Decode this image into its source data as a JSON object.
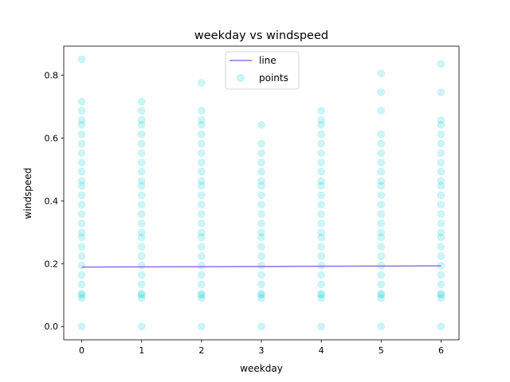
{
  "chart_data": {
    "type": "scatter",
    "title": "weekday vs windspeed",
    "xlabel": "weekday",
    "ylabel": "windspeed",
    "xlim": [
      -0.3,
      6.3
    ],
    "ylim": [
      -0.0425,
      0.8925
    ],
    "xticks": [
      "0",
      "1",
      "2",
      "3",
      "4",
      "5",
      "6"
    ],
    "yticks": [
      "0.0",
      "0.2",
      "0.4",
      "0.6",
      "0.8"
    ],
    "xtick_values": [
      0,
      1,
      2,
      3,
      4,
      5,
      6
    ],
    "ytick_values": [
      0.0,
      0.2,
      0.4,
      0.6,
      0.8
    ],
    "legend": {
      "placement": "top-center",
      "entries": [
        "line",
        "points"
      ]
    },
    "grid": false,
    "series": [
      {
        "name": "line",
        "type": "line",
        "color": "#9370db",
        "x": [
          0,
          6
        ],
        "y": [
          0.189,
          0.193
        ]
      },
      {
        "name": "points",
        "type": "scatter",
        "color": "#00ced1",
        "alpha": 0.2,
        "points": [
          {
            "x": 0,
            "values": [
              0.0,
              0.09,
              0.1,
              0.105,
              0.134,
              0.164,
              0.194,
              0.224,
              0.254,
              0.284,
              0.299,
              0.328,
              0.358,
              0.388,
              0.418,
              0.448,
              0.463,
              0.493,
              0.522,
              0.552,
              0.582,
              0.612,
              0.642,
              0.657,
              0.687,
              0.716,
              0.851
            ]
          },
          {
            "x": 1,
            "values": [
              0.0,
              0.09,
              0.1,
              0.105,
              0.134,
              0.164,
              0.194,
              0.224,
              0.254,
              0.284,
              0.299,
              0.328,
              0.358,
              0.388,
              0.418,
              0.448,
              0.463,
              0.493,
              0.522,
              0.552,
              0.582,
              0.612,
              0.642,
              0.657,
              0.687,
              0.716
            ]
          },
          {
            "x": 2,
            "values": [
              0.0,
              0.09,
              0.1,
              0.105,
              0.134,
              0.164,
              0.194,
              0.224,
              0.254,
              0.284,
              0.299,
              0.328,
              0.358,
              0.388,
              0.418,
              0.448,
              0.463,
              0.493,
              0.522,
              0.552,
              0.582,
              0.612,
              0.642,
              0.657,
              0.687,
              0.776
            ]
          },
          {
            "x": 3,
            "values": [
              0.0,
              0.09,
              0.1,
              0.105,
              0.134,
              0.164,
              0.194,
              0.224,
              0.254,
              0.284,
              0.299,
              0.328,
              0.358,
              0.388,
              0.418,
              0.448,
              0.463,
              0.493,
              0.522,
              0.552,
              0.582,
              0.642
            ]
          },
          {
            "x": 4,
            "values": [
              0.0,
              0.09,
              0.1,
              0.105,
              0.134,
              0.164,
              0.194,
              0.224,
              0.254,
              0.284,
              0.299,
              0.328,
              0.358,
              0.388,
              0.418,
              0.448,
              0.463,
              0.493,
              0.522,
              0.552,
              0.582,
              0.612,
              0.642,
              0.657,
              0.687
            ]
          },
          {
            "x": 5,
            "values": [
              0.0,
              0.09,
              0.1,
              0.105,
              0.134,
              0.164,
              0.194,
              0.224,
              0.254,
              0.284,
              0.299,
              0.328,
              0.358,
              0.388,
              0.418,
              0.448,
              0.463,
              0.493,
              0.522,
              0.552,
              0.582,
              0.612,
              0.687,
              0.746,
              0.806
            ]
          },
          {
            "x": 6,
            "values": [
              0.0,
              0.09,
              0.1,
              0.105,
              0.134,
              0.164,
              0.194,
              0.224,
              0.254,
              0.284,
              0.299,
              0.328,
              0.358,
              0.388,
              0.418,
              0.448,
              0.463,
              0.493,
              0.522,
              0.552,
              0.582,
              0.612,
              0.642,
              0.657,
              0.746,
              0.836
            ]
          }
        ]
      }
    ]
  }
}
